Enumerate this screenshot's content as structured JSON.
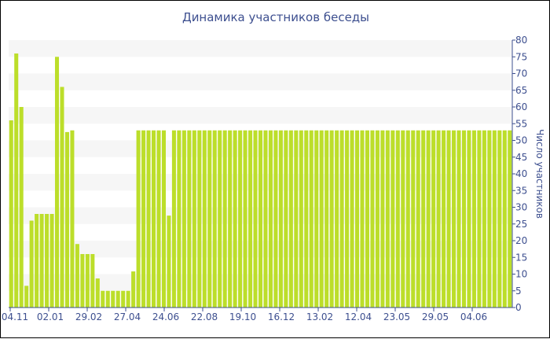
{
  "chart_data": {
    "type": "bar",
    "title": "Динамика участников беседы",
    "ylabel": "Число участников",
    "ylim": [
      0,
      80
    ],
    "y_ticks": [
      0,
      5,
      10,
      15,
      20,
      25,
      30,
      35,
      40,
      45,
      50,
      55,
      60,
      65,
      70,
      75,
      80
    ],
    "x_tick_labels": [
      "04.11",
      "02.01",
      "29.02",
      "27.04",
      "24.06",
      "22.08",
      "19.10",
      "16.12",
      "13.02",
      "12.04",
      "23.05",
      "29.05",
      "04.06"
    ],
    "values": [
      56,
      76,
      60,
      6.5,
      26,
      28,
      28,
      28,
      28,
      75,
      66,
      52.5,
      53,
      19,
      16,
      16,
      16,
      8.7,
      5,
      5,
      5,
      5,
      5,
      5,
      10.8,
      53,
      53,
      53,
      53,
      53,
      53,
      27.5,
      53,
      53,
      53,
      53,
      53,
      53,
      53,
      53,
      53,
      53,
      53,
      53,
      53,
      53,
      53,
      53,
      53,
      53,
      53,
      53,
      53,
      53,
      53,
      53,
      53,
      53,
      53,
      53,
      53,
      53,
      53,
      53,
      53,
      53,
      53,
      53,
      53,
      53,
      53,
      53,
      53,
      53,
      53,
      53,
      53,
      53,
      53,
      53,
      53,
      53,
      53,
      53,
      53,
      53,
      53,
      53,
      53,
      53,
      53,
      53,
      53,
      53,
      53,
      53,
      53,
      53,
      53
    ],
    "bar_color": "#bcde2a",
    "grid": "alternating horizontal bands",
    "band_color": "#f6f6f6",
    "text_color": "#3d4f8f"
  }
}
